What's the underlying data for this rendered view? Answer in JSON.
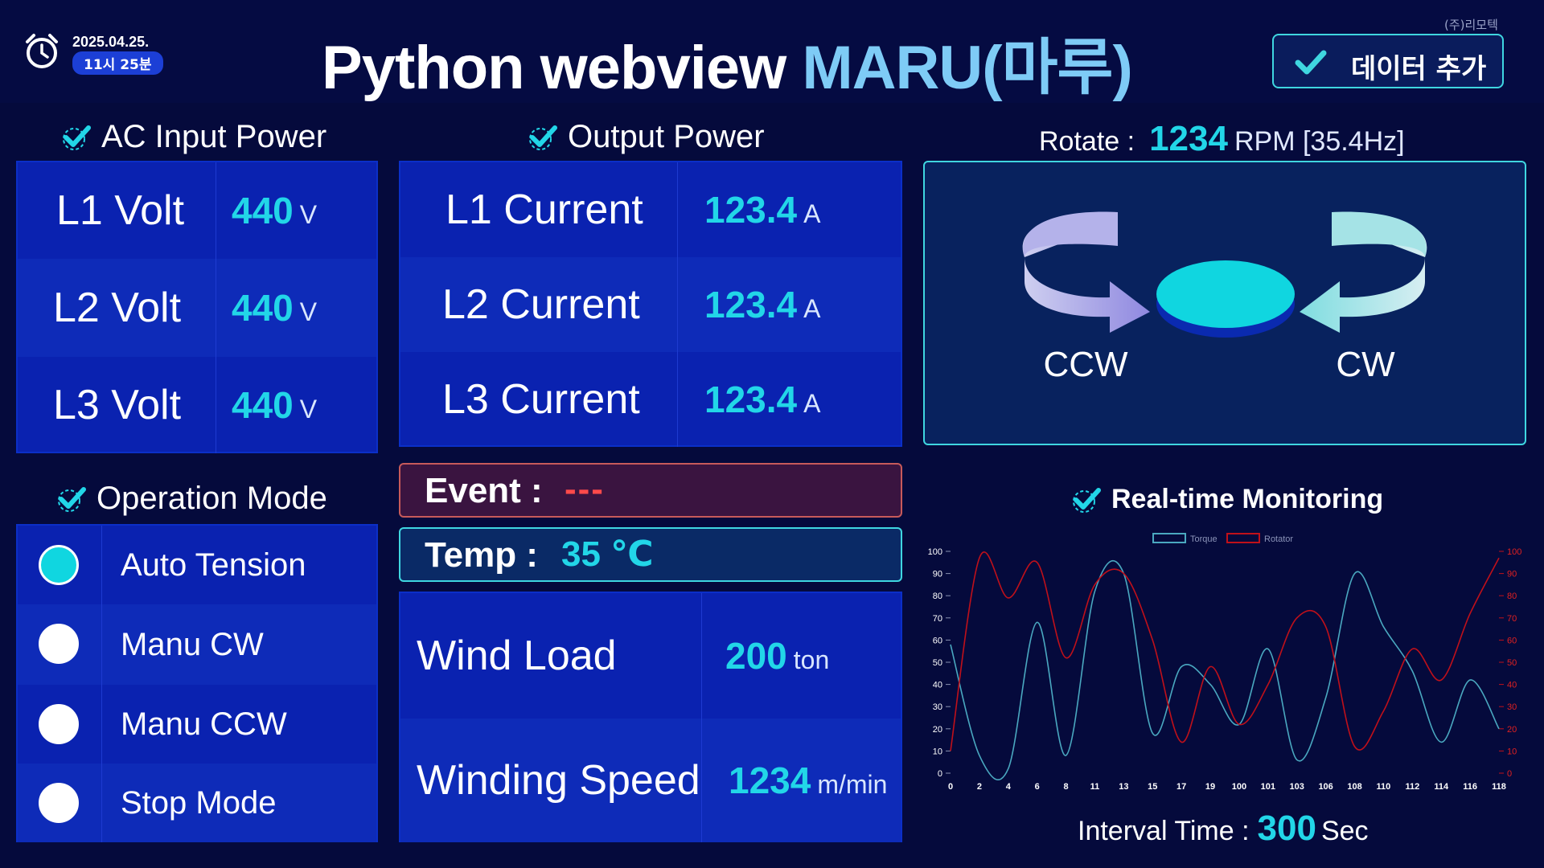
{
  "header": {
    "date": "2025.04.25.",
    "time": "11시 25분",
    "title_main": "Python webview ",
    "title_accent": "MARU(마루)",
    "company": "(주)리모텍",
    "add_button": "데이터 추가"
  },
  "ac_input": {
    "title": "AC Input Power",
    "rows": [
      {
        "label": "L1 Volt",
        "value": "440",
        "unit": "V"
      },
      {
        "label": "L2 Volt",
        "value": "440",
        "unit": "V"
      },
      {
        "label": "L3 Volt",
        "value": "440",
        "unit": "V"
      }
    ]
  },
  "output": {
    "title": "Output Power",
    "rows": [
      {
        "label": "L1 Current",
        "value": "123.4",
        "unit": "A"
      },
      {
        "label": "L2 Current",
        "value": "123.4",
        "unit": "A"
      },
      {
        "label": "L3 Current",
        "value": "123.4",
        "unit": "A"
      }
    ]
  },
  "event": {
    "label": "Event :",
    "value": "---"
  },
  "temp": {
    "label": "Temp :",
    "value": "35 ℃"
  },
  "load": {
    "rows": [
      {
        "label": "Wind Load",
        "value": "200",
        "unit": "ton"
      },
      {
        "label": "Winding Speed",
        "value": "1234",
        "unit": "m/min"
      }
    ]
  },
  "operation": {
    "title": "Operation Mode",
    "modes": [
      {
        "label": "Auto Tension",
        "selected": true
      },
      {
        "label": "Manu CW",
        "selected": false
      },
      {
        "label": "Manu CCW",
        "selected": false
      },
      {
        "label": "Stop Mode",
        "selected": false
      }
    ]
  },
  "rotate": {
    "label": "Rotate :",
    "value": "1234",
    "unit": "RPM [35.4Hz]",
    "ccw": "CCW",
    "cw": "CW"
  },
  "monitor": {
    "title": "Real-time Monitoring",
    "interval_label": "Interval Time :",
    "interval_value": "300",
    "interval_unit": "Sec"
  },
  "colors": {
    "accent": "#22d6e8",
    "panel": "#0a22b0",
    "torque": "#4aa8c0",
    "rotator": "#c0101a"
  },
  "chart_data": {
    "type": "line",
    "x": [
      "0",
      "2",
      "4",
      "6",
      "8",
      "11",
      "13",
      "15",
      "17",
      "19",
      "100",
      "101",
      "103",
      "106",
      "108",
      "110",
      "112",
      "114",
      "116",
      "118"
    ],
    "series": [
      {
        "name": "Torque",
        "values": [
          58,
          8,
          2,
          68,
          8,
          82,
          90,
          18,
          48,
          40,
          22,
          56,
          6,
          34,
          90,
          66,
          46,
          14,
          42,
          20
        ]
      },
      {
        "name": "Rotator",
        "values": [
          10,
          97,
          79,
          95,
          52,
          85,
          90,
          60,
          14,
          48,
          22,
          40,
          70,
          66,
          12,
          28,
          56,
          42,
          72,
          97
        ]
      }
    ],
    "ylim": [
      0,
      100
    ],
    "yticks": [
      "0",
      "10",
      "20",
      "30",
      "40",
      "50",
      "60",
      "70",
      "80",
      "90",
      "100"
    ],
    "legend": "top-center"
  }
}
